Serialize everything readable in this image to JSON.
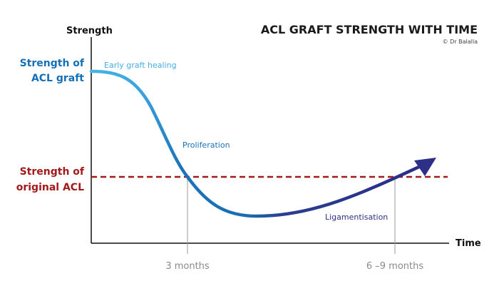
{
  "chart_data": {
    "type": "line",
    "title": "ACL GRAFT STRENGTH WITH TIME",
    "credit": "© Dr Balalla",
    "xlabel": "Time",
    "ylabel": "Strength",
    "levels": {
      "graft": {
        "label_line1": "Strength of",
        "label_line2": "ACL graft",
        "color": "#1670b8"
      },
      "original": {
        "label_line1": "Strength of",
        "label_line2": "original ACL",
        "color": "#a31a1a"
      }
    },
    "x_ticks": [
      {
        "label": "3 months"
      },
      {
        "label": "6 –9 months"
      }
    ],
    "phases": [
      {
        "name": "Early graft healing",
        "color": "#45ade0"
      },
      {
        "name": "Proliferation",
        "color": "#1a6fb5"
      },
      {
        "name": "Ligamentisation",
        "color": "#2e2f86"
      }
    ],
    "grid": false,
    "legend": "none"
  }
}
